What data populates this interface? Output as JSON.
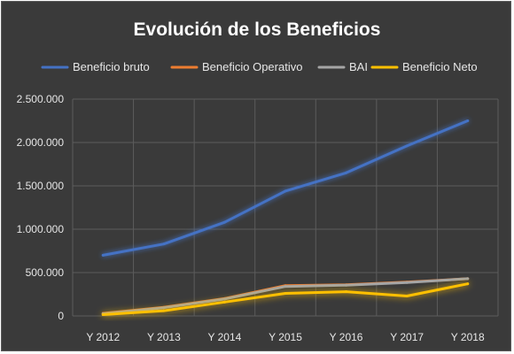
{
  "chart_data": {
    "type": "line",
    "title": "Evolución de los Beneficios",
    "xlabel": "",
    "ylabel": "",
    "categories": [
      "Y 2012",
      "Y 2013",
      "Y 2014",
      "Y 2015",
      "Y 2016",
      "Y 2017",
      "Y 2018"
    ],
    "ylim": [
      0,
      2500000
    ],
    "yticks": [
      0,
      500000,
      1000000,
      1500000,
      2000000,
      2500000
    ],
    "ytick_labels": [
      "0",
      "500.000",
      "1.000.000",
      "1.500.000",
      "2.000.000",
      "2.500.000"
    ],
    "grid": true,
    "legend_position": "top",
    "background_color": "#3a3a3a",
    "series": [
      {
        "name": "Beneficio bruto",
        "color": "#4472c4",
        "values": [
          700000,
          830000,
          1080000,
          1440000,
          1650000,
          1960000,
          2250000
        ]
      },
      {
        "name": "Beneficio Operativo",
        "color": "#ed7d31",
        "values": [
          30000,
          100000,
          200000,
          350000,
          360000,
          390000,
          430000
        ]
      },
      {
        "name": "BAI",
        "color": "#a5a5a5",
        "values": [
          25000,
          95000,
          195000,
          340000,
          355000,
          385000,
          430000
        ]
      },
      {
        "name": "Beneficio Neto",
        "color": "#ffc000",
        "values": [
          15000,
          60000,
          160000,
          260000,
          280000,
          230000,
          370000
        ]
      }
    ]
  }
}
